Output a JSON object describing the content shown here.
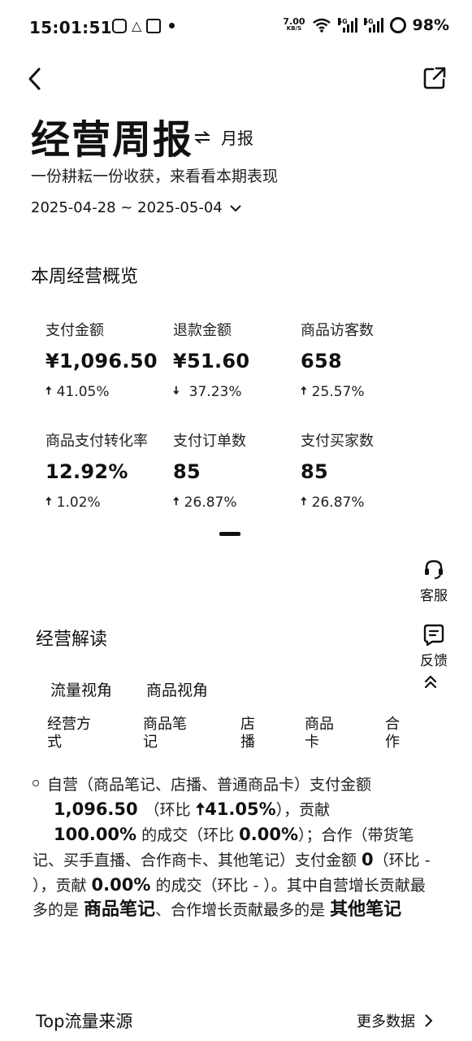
{
  "status_bar": {
    "time": "15:01:51",
    "net_speed_value": "7.00",
    "net_speed_unit": "KB/S",
    "sig1_label": "5G",
    "sig2_label": "5G",
    "battery": "98%"
  },
  "header": {
    "title": "经营周报",
    "switch_label": "月报",
    "subtitle": "一份耕耘一份收获，来看看本期表现",
    "date_range": "2025-04-28 ~ 2025-05-04"
  },
  "overview": {
    "title": "本周经营概览",
    "metrics": [
      {
        "label": "支付金额",
        "value": "¥1,096.50",
        "direction": "up",
        "change": "41.05%"
      },
      {
        "label": "退款金额",
        "value": "¥51.60",
        "direction": "down",
        "change": "37.23%"
      },
      {
        "label": "商品访客数",
        "value": "658",
        "direction": "up",
        "change": "25.57%"
      },
      {
        "label": "商品支付转化率",
        "value": "12.92%",
        "direction": "up",
        "change": "1.02%"
      },
      {
        "label": "支付订单数",
        "value": "85",
        "direction": "up",
        "change": "26.87%"
      },
      {
        "label": "支付买家数",
        "value": "85",
        "direction": "up",
        "change": "26.87%"
      }
    ]
  },
  "side_tools": {
    "service": "客服",
    "feedback": "反馈"
  },
  "analysis": {
    "title": "经营解读",
    "tabs": [
      "流量视角",
      "商品视角"
    ],
    "subtabs": [
      "经营方\n式",
      "商品笔\n记",
      "店\n播",
      "商品\n卡",
      "合\n作"
    ],
    "p1": "自营（商品笔记、店播、普通商品卡）支付金额",
    "v1": "1,096.50",
    "p2": "（环比 ",
    "v2": "41.05%",
    "p3": "），贡献",
    "v3": "100.00%",
    "p4": " 的成交（环比 ",
    "v4": "0.00%",
    "p5": "）；合作（带货笔记、买手直播、合作商卡、其他笔记）支付金额 ",
    "v5": "0",
    "p6": "（环比 - ），贡献 ",
    "v6": "0.00%",
    "p7": " 的成交（环比 - ）。其中自营增长贡献最多的是 ",
    "v7": "商品笔记",
    "p8": "、合作增长贡献最多的是 ",
    "v8": "其他笔记"
  },
  "top_source": {
    "title": "Top流量来源",
    "more": "更多数据"
  },
  "icons": {
    "back": "back-arrow-icon",
    "share": "share-external-icon",
    "switch": "switch-arrows-icon",
    "chevron": "chevron-down-icon",
    "service": "headset-icon",
    "feedback": "feedback-icon",
    "collapse": "double-chevron-up-icon",
    "more": "chevron-right-icon"
  }
}
